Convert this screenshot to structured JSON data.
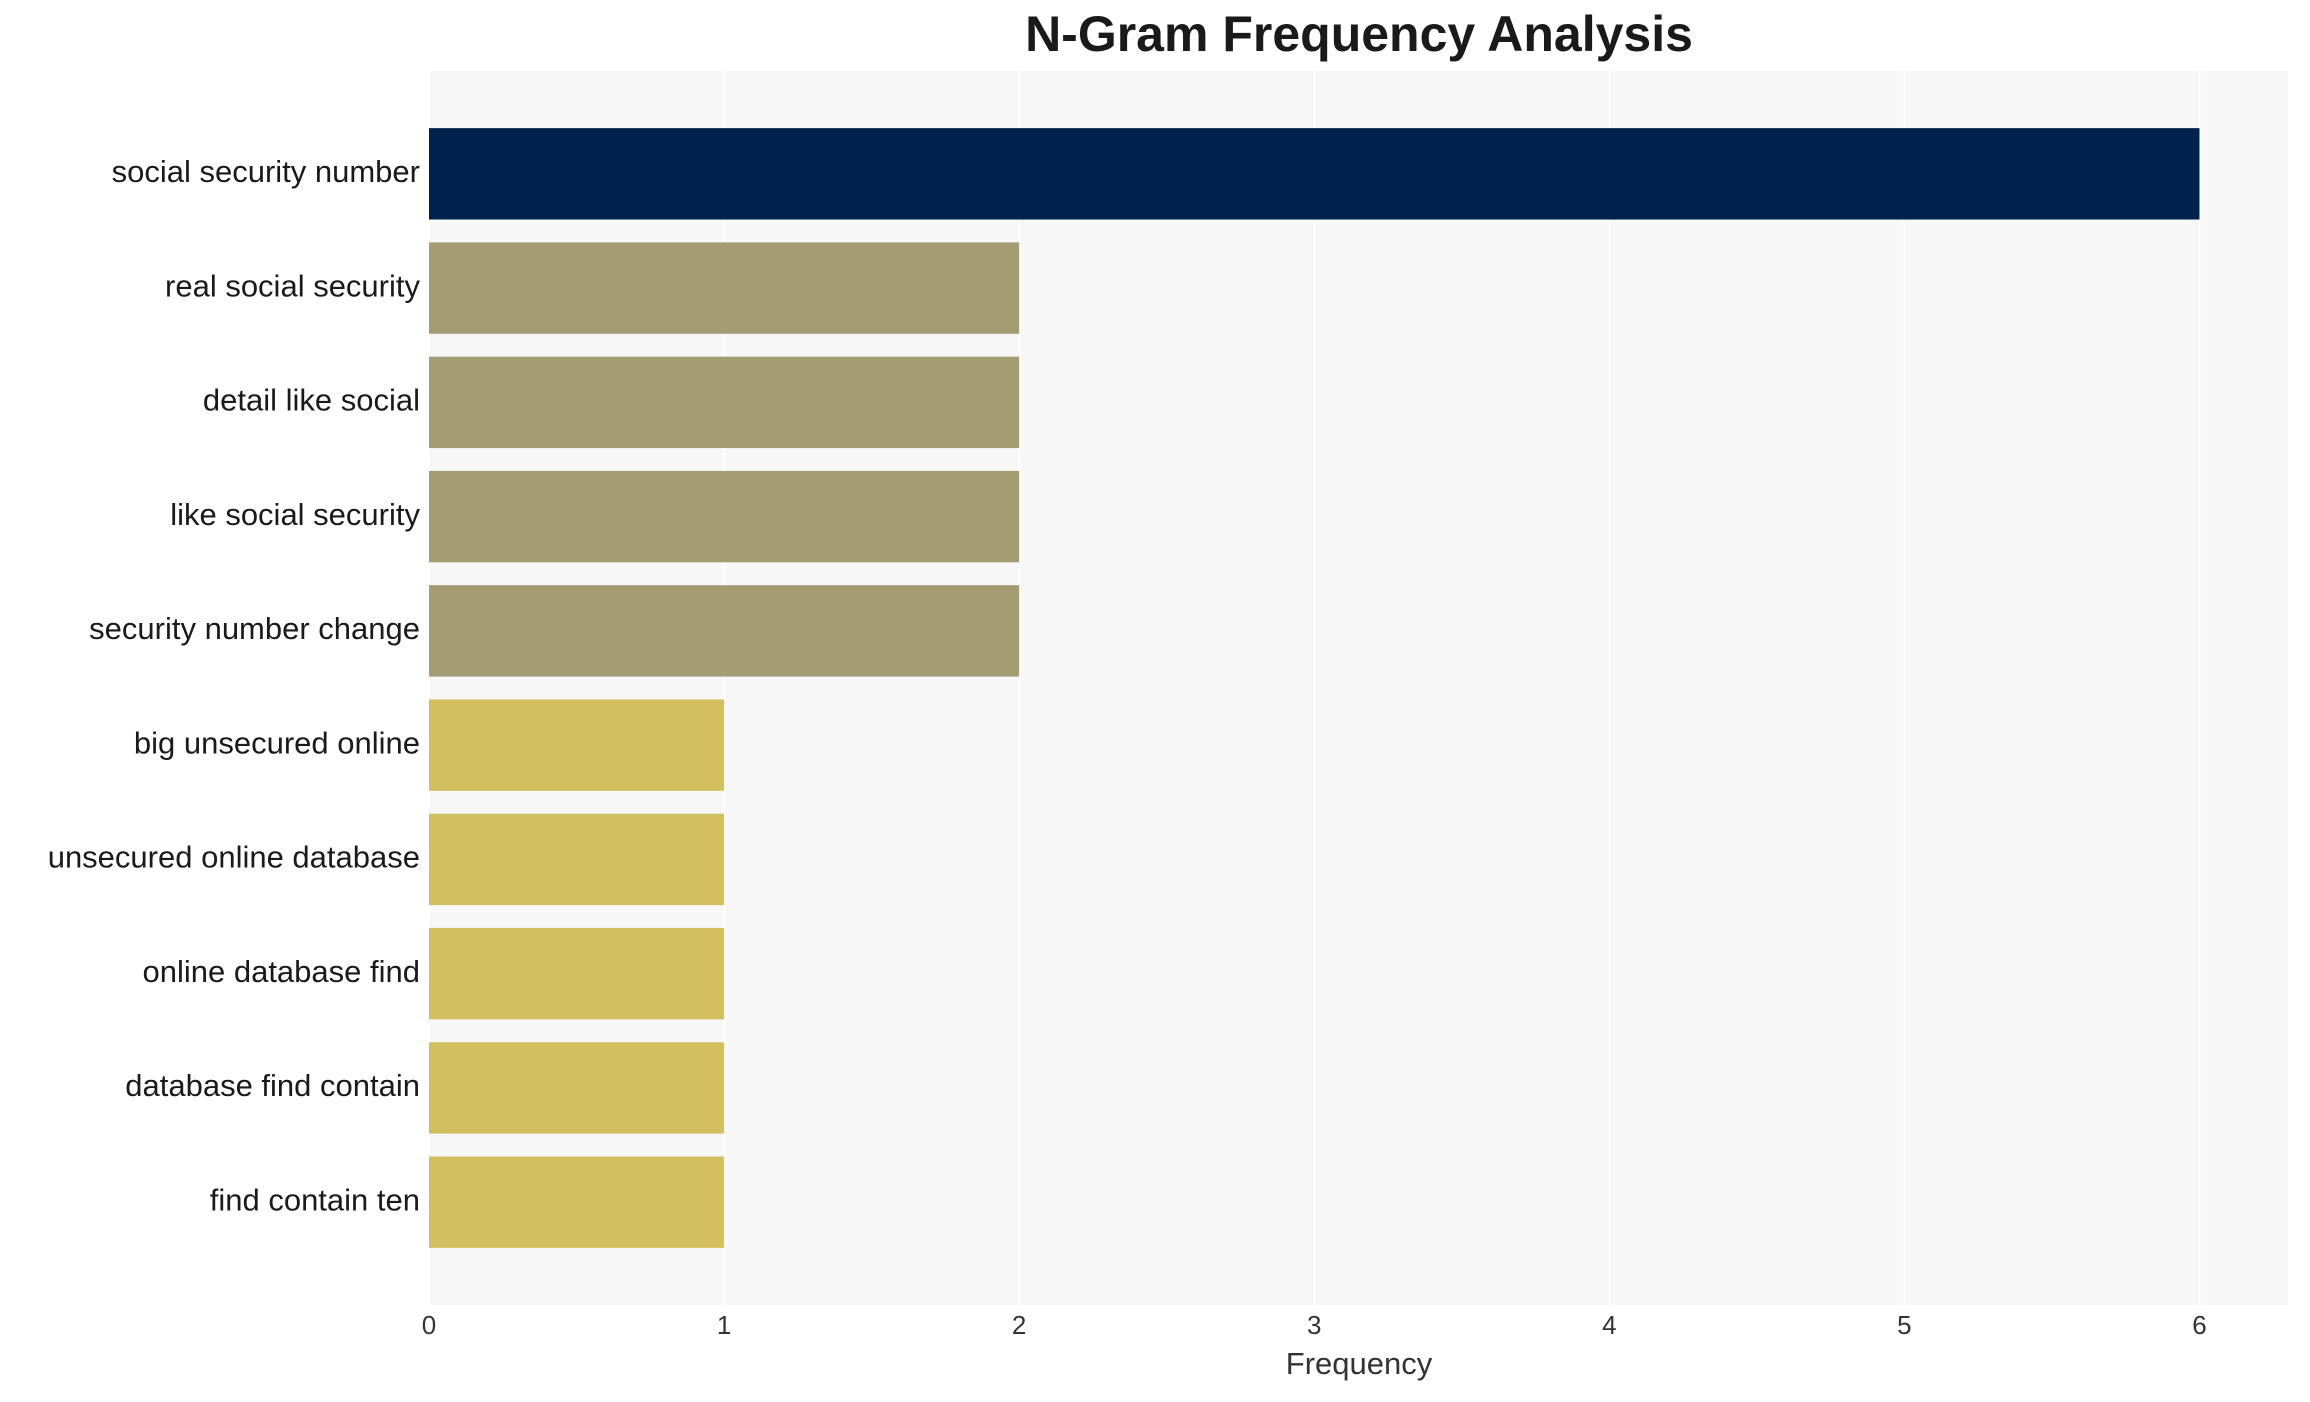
{
  "chart_data": {
    "type": "bar",
    "orientation": "horizontal",
    "title": "N-Gram Frequency Analysis",
    "x_label": "Frequency",
    "categories": [
      "social security number",
      "real social security",
      "detail like social",
      "like social security",
      "security number change",
      "big unsecured online",
      "unsecured online database",
      "online database find",
      "database find contain",
      "find contain ten"
    ],
    "values": [
      6,
      2,
      2,
      2,
      2,
      1,
      1,
      1,
      1,
      1
    ],
    "colors": [
      "#00224e",
      "#a59c74",
      "#a59c74",
      "#a59c74",
      "#a59c74",
      "#d2c060",
      "#d2c060",
      "#d2c060",
      "#d2c060",
      "#d2c060"
    ],
    "xlim": [
      0,
      6.3
    ],
    "xticks": [
      0,
      1,
      2,
      3,
      4,
      5,
      6
    ],
    "grid": true
  }
}
